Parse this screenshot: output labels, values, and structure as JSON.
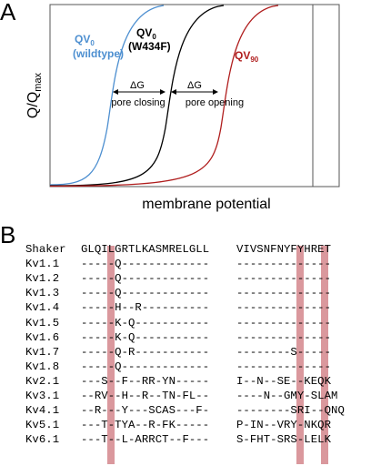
{
  "panel_a": {
    "letter": "A",
    "ylabel": "Q/Q",
    "ylabel_sub": "max",
    "xlabel": "membrane potential",
    "curves": [
      {
        "name": "QV",
        "sub": "0",
        "extra": "(wildtype)",
        "color": "#4d8fd0"
      },
      {
        "name": "QV",
        "sub": "0",
        "extra": "(W434F)",
        "color": "#000000"
      },
      {
        "name": "QV",
        "sub": "90",
        "extra": "",
        "color": "#b01e1e"
      }
    ],
    "annotations": {
      "dg1": "ΔG",
      "dg2": "ΔG",
      "pore_closing": "pore closing",
      "pore_opening": "pore opening"
    }
  },
  "panel_b": {
    "letter": "B",
    "highlight_color": "#d4868c",
    "rows": [
      {
        "name": "Shaker",
        "seg1": "GLQILGRTLKASMRELGLL",
        "seg2": "VIVSNFNYFYHRET"
      },
      {
        "name": "Kv1.1",
        "seg1": "-----Q-------------",
        "seg2": "--------------"
      },
      {
        "name": "Kv1.2",
        "seg1": "-----Q-------------",
        "seg2": "--------------"
      },
      {
        "name": "Kv1.3",
        "seg1": "-----Q-------------",
        "seg2": "--------------"
      },
      {
        "name": "Kv1.4",
        "seg1": "-----H--R----------",
        "seg2": "--------------"
      },
      {
        "name": "Kv1.5",
        "seg1": "-----K-Q-----------",
        "seg2": "--------------"
      },
      {
        "name": "Kv1.6",
        "seg1": "-----K-Q-----------",
        "seg2": "--------------"
      },
      {
        "name": "Kv1.7",
        "seg1": "-----Q-R-----------",
        "seg2": "--------S-----"
      },
      {
        "name": "Kv1.8",
        "seg1": "-----Q-------------",
        "seg2": "--------------"
      },
      {
        "name": "Kv2.1",
        "seg1": "---S--F--RR-YN-----",
        "seg2": "I--N--SE--KEQK"
      },
      {
        "name": "Kv3.1",
        "seg1": "--RV--H--R--TN-FL--",
        "seg2": "----N--GMY-SLAM"
      },
      {
        "name": "Kv4.1",
        "seg1": "--R---Y---SCAS---F-",
        "seg2": "--------SRI--QNQ"
      },
      {
        "name": "Kv5.1",
        "seg1": "---T-TYA--R-FK-----",
        "seg2": "P-IN--VRY-NKQR"
      },
      {
        "name": "Kv6.1",
        "seg1": "---T--L-ARRCT--F---",
        "seg2": "S-FHT-SRS-LELK"
      }
    ]
  }
}
